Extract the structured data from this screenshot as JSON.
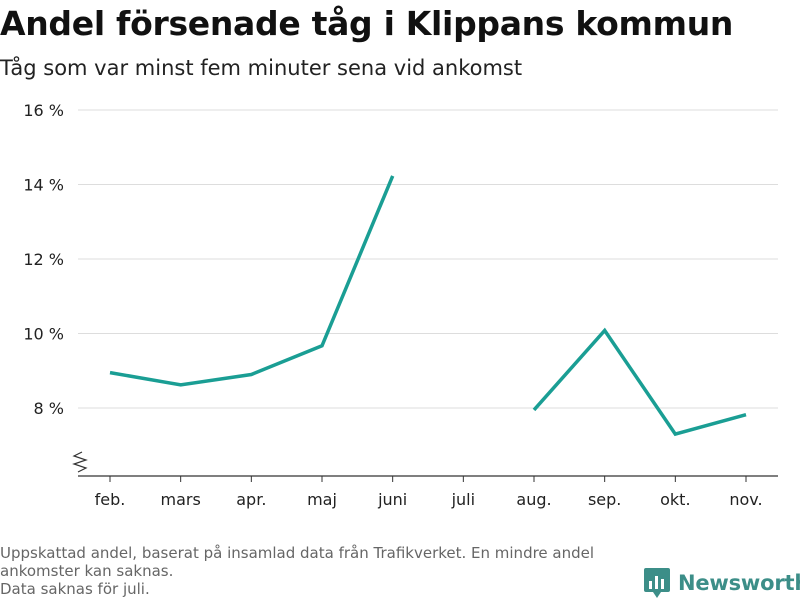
{
  "header": {
    "title": "Andel försenade tåg i Klippans kommun",
    "subtitle": "Tåg som var minst fem minuter sena vid ankomst"
  },
  "footnote": {
    "lines": [
      "Uppskattad andel, baserat på insamlad data från Trafikverket. En mindre andel",
      "ankomster kan saknas.",
      "Data saknas för juli."
    ]
  },
  "brand": {
    "name": "Newsworthy",
    "icon": "bar-chart-logo-icon"
  },
  "colors": {
    "line": "#1a9e94",
    "grid": "#dddddd",
    "axis": "#333333",
    "brand": "#3c8e88"
  },
  "chart_data": {
    "type": "line",
    "title": "Andel försenade tåg i Klippans kommun",
    "subtitle": "Tåg som var minst fem minuter sena vid ankomst",
    "categories": [
      "feb.",
      "mars",
      "apr.",
      "maj",
      "juni",
      "juli",
      "aug.",
      "sep.",
      "okt.",
      "nov."
    ],
    "series": [
      {
        "values": [
          8.95,
          8.62,
          8.9,
          9.67,
          14.23,
          null,
          7.95,
          10.08,
          7.3,
          7.82
        ]
      }
    ],
    "yticks": [
      8,
      10,
      12,
      14,
      16
    ],
    "ytick_labels": [
      "8 %",
      "10 %",
      "12 %",
      "14 %",
      "16 %"
    ],
    "ylim": [
      6.6,
      16
    ],
    "axis_break": true,
    "grid": true,
    "xlabel": "",
    "ylabel": ""
  }
}
